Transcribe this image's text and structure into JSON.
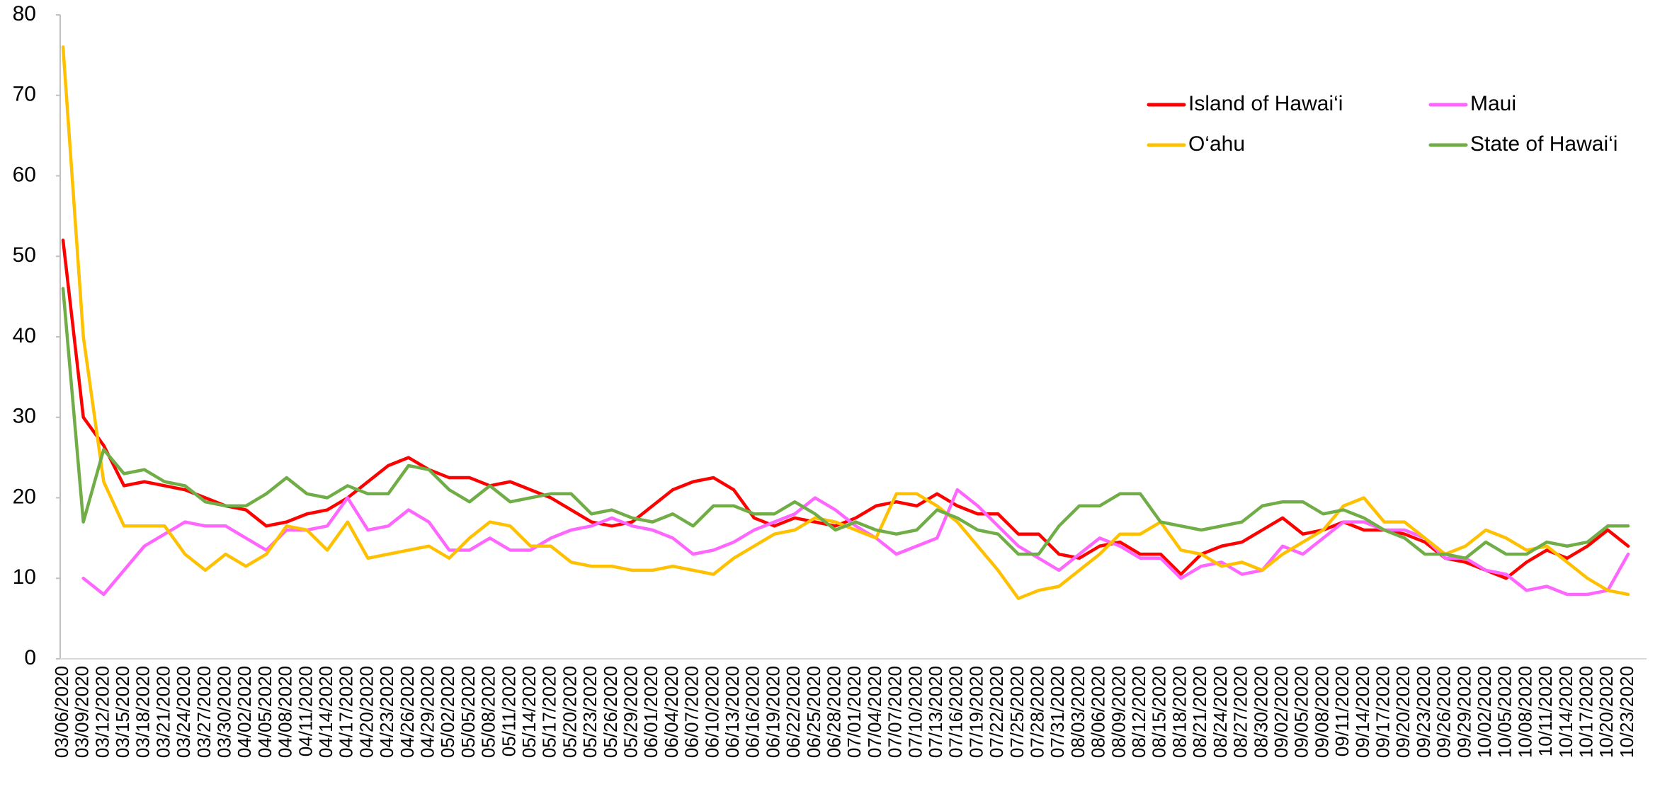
{
  "chart_data": {
    "type": "line",
    "categories": [
      "03/06/2020",
      "03/09/2020",
      "03/12/2020",
      "03/15/2020",
      "03/18/2020",
      "03/21/2020",
      "03/24/2020",
      "03/27/2020",
      "03/30/2020",
      "04/02/2020",
      "04/05/2020",
      "04/08/2020",
      "04/11/2020",
      "04/14/2020",
      "04/17/2020",
      "04/20/2020",
      "04/23/2020",
      "04/26/2020",
      "04/29/2020",
      "05/02/2020",
      "05/05/2020",
      "05/08/2020",
      "05/11/2020",
      "05/14/2020",
      "05/17/2020",
      "05/20/2020",
      "05/23/2020",
      "05/26/2020",
      "05/29/2020",
      "06/01/2020",
      "06/04/2020",
      "06/07/2020",
      "06/10/2020",
      "06/13/2020",
      "06/16/2020",
      "06/19/2020",
      "06/22/2020",
      "06/25/2020",
      "06/28/2020",
      "07/01/2020",
      "07/04/2020",
      "07/07/2020",
      "07/10/2020",
      "07/13/2020",
      "07/16/2020",
      "07/19/2020",
      "07/22/2020",
      "07/25/2020",
      "07/28/2020",
      "07/31/2020",
      "08/03/2020",
      "08/06/2020",
      "08/09/2020",
      "08/12/2020",
      "08/15/2020",
      "08/18/2020",
      "08/21/2020",
      "08/24/2020",
      "08/27/2020",
      "08/30/2020",
      "09/02/2020",
      "09/05/2020",
      "09/08/2020",
      "09/11/2020",
      "09/14/2020",
      "09/17/2020",
      "09/20/2020",
      "09/23/2020",
      "09/26/2020",
      "09/29/2020",
      "10/02/2020",
      "10/05/2020",
      "10/08/2020",
      "10/11/2020",
      "10/14/2020",
      "10/17/2020",
      "10/20/2020",
      "10/23/2020"
    ],
    "series": [
      {
        "name": "Island of Hawai‘i",
        "color": "#ff0000",
        "values": [
          52,
          30,
          26.5,
          21.5,
          22,
          21.5,
          21,
          20,
          19,
          18.5,
          16.5,
          17,
          18,
          18.5,
          20,
          22,
          24,
          25,
          23.5,
          22.5,
          22.5,
          21.5,
          22,
          21,
          20,
          18.5,
          17,
          16.5,
          17,
          19,
          21,
          22,
          22.5,
          21,
          17.5,
          16.5,
          17.5,
          17,
          16.5,
          17.5,
          19,
          19.5,
          19,
          20.5,
          19,
          18,
          18,
          15.5,
          15.5,
          13,
          12.5,
          14,
          14.5,
          13,
          13,
          10.5,
          13,
          14,
          14.5,
          16,
          17.5,
          15.5,
          16,
          17,
          16,
          16,
          15.5,
          14.5,
          12.5,
          12,
          11,
          10,
          12,
          13.5,
          12.5,
          14,
          16,
          14
        ]
      },
      {
        "name": "Maui",
        "color": "#ff66ff",
        "values": [
          null,
          10,
          8,
          11,
          14,
          15.5,
          17,
          16.5,
          16.5,
          15,
          13.5,
          16,
          16,
          16.5,
          20,
          16,
          16.5,
          18.5,
          17,
          13.5,
          13.5,
          15,
          13.5,
          13.5,
          15,
          16,
          16.5,
          17.5,
          16.5,
          16,
          15,
          13,
          13.5,
          14.5,
          16,
          17,
          18,
          20,
          18.5,
          16.5,
          15,
          13,
          14,
          15,
          21,
          19,
          16.5,
          14,
          12.5,
          11,
          13,
          15,
          14,
          12.5,
          12.5,
          10,
          11.5,
          12,
          10.5,
          11,
          14,
          13,
          15,
          17,
          17,
          16,
          16,
          15,
          12.5,
          12.5,
          11,
          10.5,
          8.5,
          9,
          8,
          8,
          8.5,
          13
        ]
      },
      {
        "name": "O‘ahu",
        "color": "#ffc000",
        "values": [
          76,
          40,
          22,
          16.5,
          16.5,
          16.5,
          13,
          11,
          13,
          11.5,
          13,
          16.5,
          16,
          13.5,
          17,
          12.5,
          13,
          13.5,
          14,
          12.5,
          15,
          17,
          16.5,
          14,
          14,
          12,
          11.5,
          11.5,
          11,
          11,
          11.5,
          11,
          10.5,
          12.5,
          14,
          15.5,
          16,
          17.5,
          17,
          16,
          15,
          20.5,
          20.5,
          19,
          17,
          14,
          11,
          7.5,
          8.5,
          9,
          11,
          13,
          15.5,
          15.5,
          17,
          13.5,
          13,
          11.5,
          12,
          11,
          13,
          14.5,
          16,
          19,
          20,
          17,
          17,
          15,
          13,
          14,
          16,
          15,
          13.5,
          14,
          12,
          10,
          8.5,
          8
        ]
      },
      {
        "name": "State of Hawai‘i",
        "color": "#70ad47",
        "values": [
          46,
          17,
          26,
          23,
          23.5,
          22,
          21.5,
          19.5,
          19,
          19,
          20.5,
          22.5,
          20.5,
          20,
          21.5,
          20.5,
          20.5,
          24,
          23.5,
          21,
          19.5,
          21.5,
          19.5,
          20,
          20.5,
          20.5,
          18,
          18.5,
          17.5,
          17,
          18,
          16.5,
          19,
          19,
          18,
          18,
          19.5,
          18,
          16,
          17,
          16,
          15.5,
          16,
          18.5,
          17.5,
          16,
          15.5,
          13,
          13,
          16.5,
          19,
          19,
          20.5,
          20.5,
          17,
          16.5,
          16,
          16.5,
          17,
          19,
          19.5,
          19.5,
          18,
          18.5,
          17.5,
          16,
          15,
          13,
          13,
          12.5,
          14.5,
          13,
          13,
          14.5,
          14,
          14.5,
          16.5,
          16.5
        ]
      }
    ],
    "ylim": [
      0,
      80
    ],
    "yticks": [
      0,
      10,
      20,
      30,
      40,
      50,
      60,
      70,
      80
    ],
    "grid": false,
    "legend": "top-right"
  }
}
